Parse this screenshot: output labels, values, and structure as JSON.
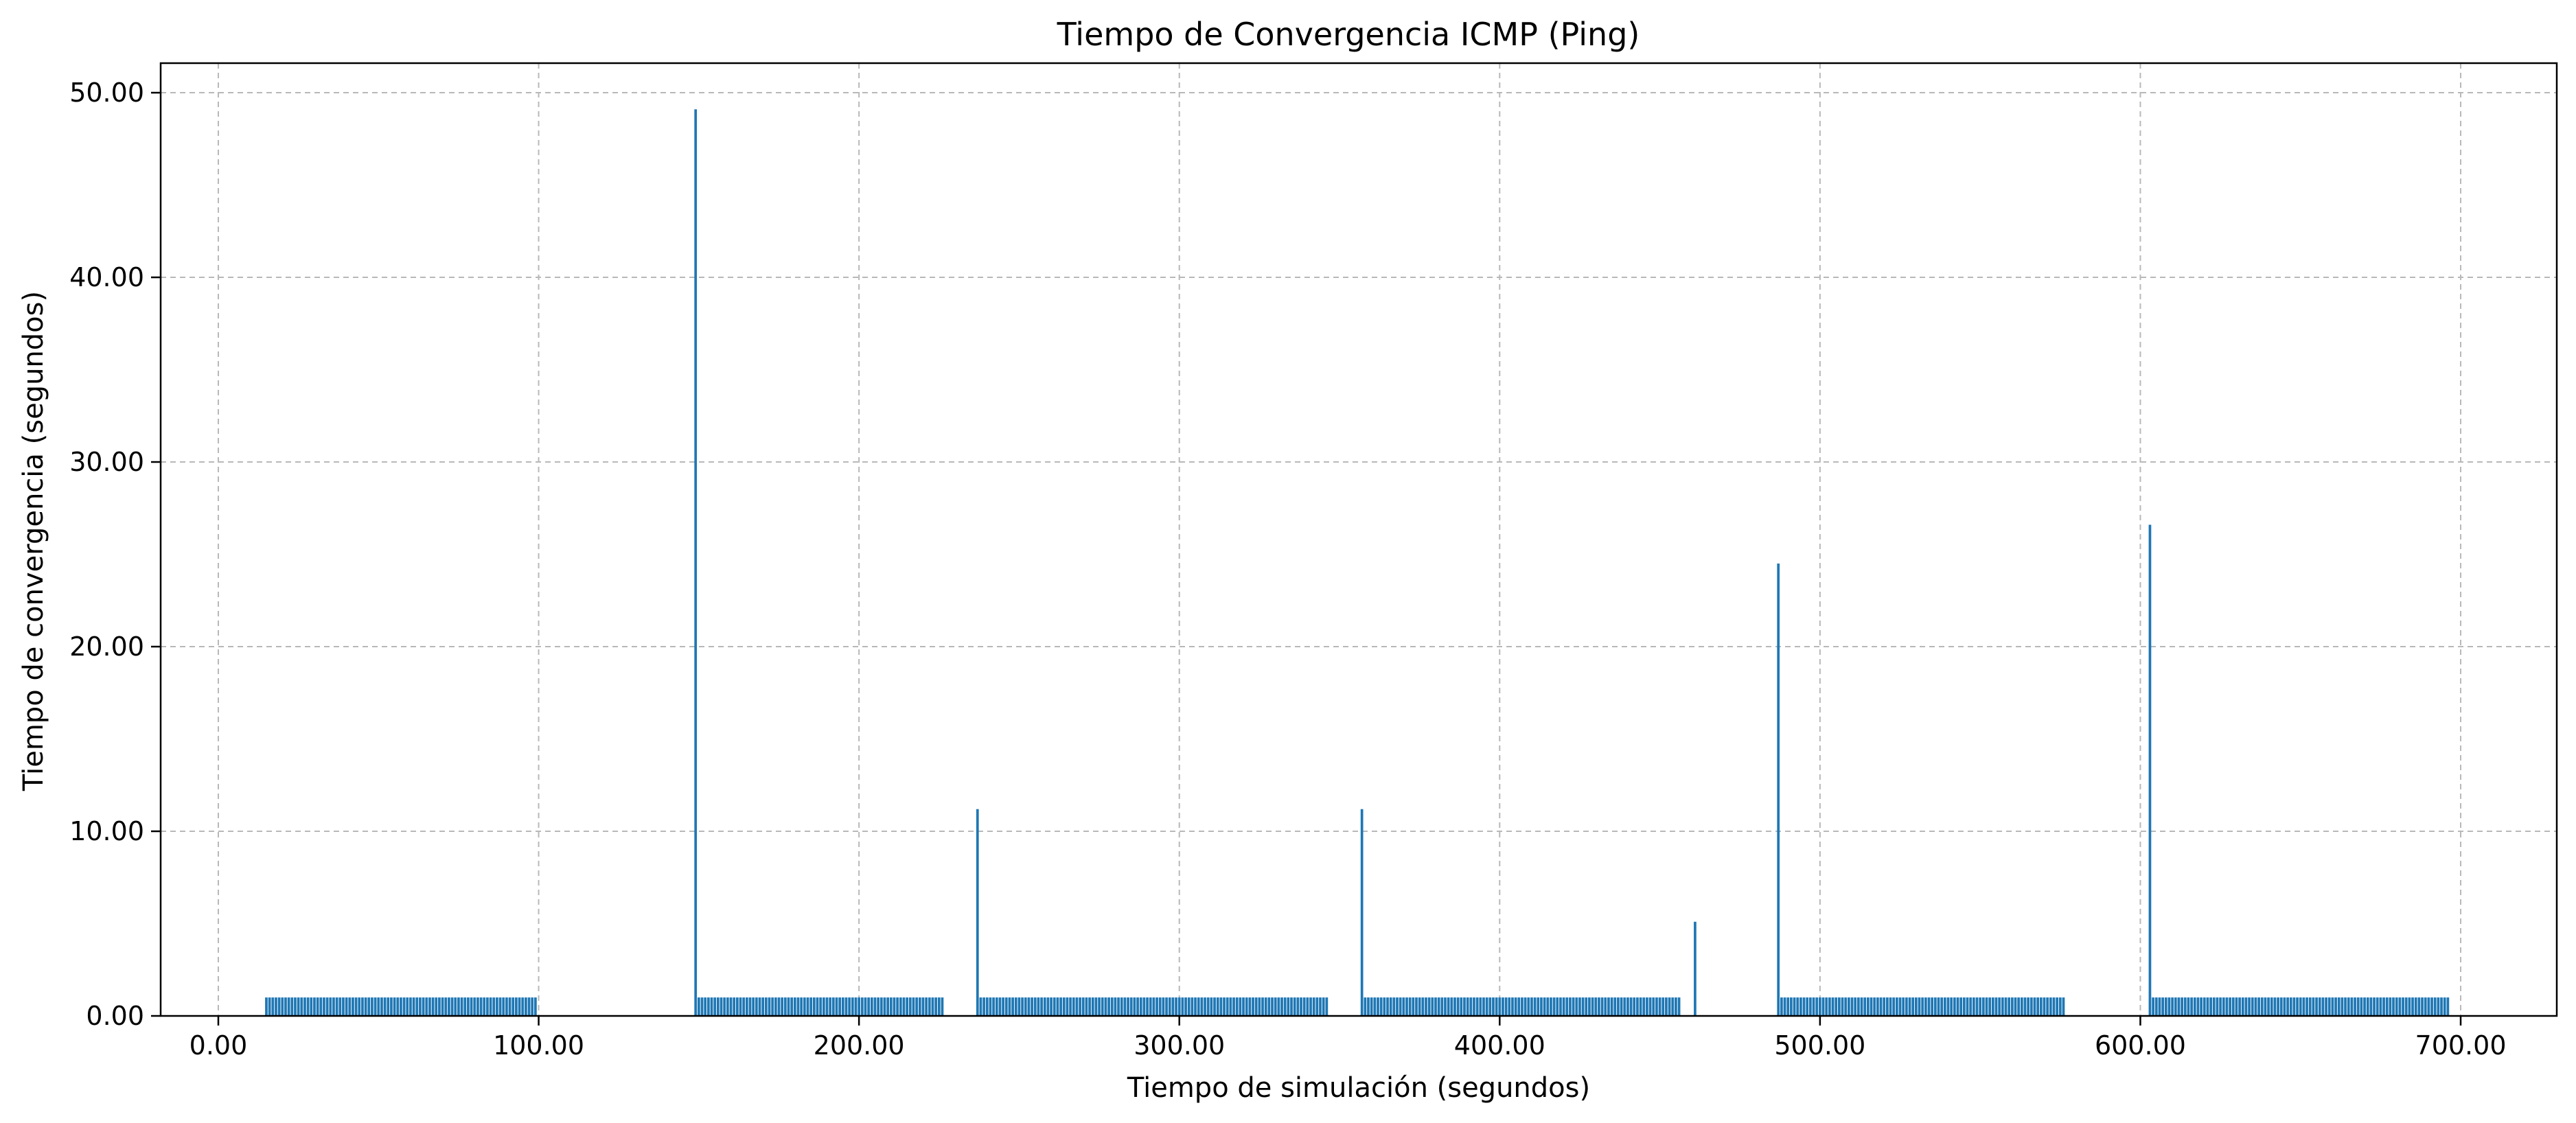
{
  "chart_data": {
    "type": "bar",
    "title": "Tiempo de Convergencia ICMP (Ping)",
    "xlabel": "Tiempo de simulación (segundos)",
    "ylabel": "Tiempo de convergencia (segundos)",
    "xlim": [
      -18,
      730
    ],
    "ylim": [
      0,
      51.6
    ],
    "x_ticks": [
      0,
      100,
      200,
      300,
      400,
      500,
      600,
      700
    ],
    "x_tick_labels": [
      "0.00",
      "100.00",
      "200.00",
      "300.00",
      "400.00",
      "500.00",
      "600.00",
      "700.00"
    ],
    "y_ticks": [
      0,
      10,
      20,
      30,
      40,
      50
    ],
    "y_tick_labels": [
      "0.00",
      "10.00",
      "20.00",
      "30.00",
      "40.00",
      "50.00"
    ],
    "grid": true,
    "bar_color": "#1f77b4",
    "bar_width": 0.8,
    "blocks": [
      {
        "start": 15,
        "end": 99,
        "step": 1,
        "value": 1.0
      },
      {
        "start": 150,
        "end": 226,
        "step": 1,
        "value": 1.0
      },
      {
        "start": 238,
        "end": 346,
        "step": 1,
        "value": 1.0
      },
      {
        "start": 358,
        "end": 456,
        "step": 1,
        "value": 1.0
      },
      {
        "start": 488,
        "end": 576,
        "step": 1,
        "value": 1.0
      },
      {
        "start": 604,
        "end": 696,
        "step": 1,
        "value": 1.0
      }
    ],
    "spikes": [
      {
        "x": 149,
        "value": 49.1
      },
      {
        "x": 237,
        "value": 11.2
      },
      {
        "x": 357,
        "value": 11.2
      },
      {
        "x": 461,
        "value": 5.1
      },
      {
        "x": 487,
        "value": 24.5
      },
      {
        "x": 603,
        "value": 26.6
      }
    ]
  }
}
